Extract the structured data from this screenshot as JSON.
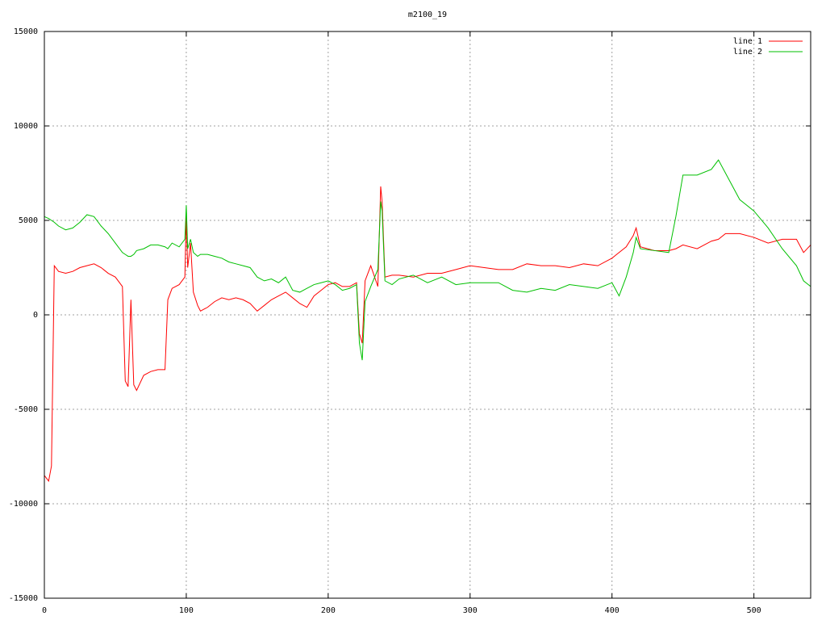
{
  "chart_data": {
    "type": "line",
    "title": "m2100_19",
    "x": [
      0,
      3,
      5,
      7,
      10,
      15,
      20,
      25,
      30,
      35,
      40,
      45,
      50,
      55,
      57,
      59,
      61,
      63,
      65,
      70,
      75,
      80,
      85,
      87,
      90,
      95,
      99,
      100,
      101,
      103,
      105,
      108,
      110,
      115,
      120,
      125,
      130,
      135,
      140,
      145,
      150,
      155,
      160,
      165,
      170,
      175,
      180,
      185,
      190,
      195,
      200,
      205,
      210,
      215,
      220,
      222,
      224,
      226,
      230,
      235,
      237,
      238,
      240,
      245,
      250,
      260,
      270,
      280,
      290,
      300,
      310,
      320,
      330,
      340,
      350,
      360,
      370,
      380,
      390,
      400,
      405,
      410,
      415,
      417,
      420,
      430,
      440,
      445,
      450,
      460,
      470,
      475,
      480,
      490,
      500,
      510,
      520,
      530,
      535,
      540
    ],
    "series": [
      {
        "name": "line 1",
        "color": "#ff0000",
        "values": [
          -8500,
          -8800,
          -8000,
          2600,
          2300,
          2200,
          2300,
          2500,
          2600,
          2700,
          2500,
          2200,
          2000,
          1500,
          -3500,
          -3800,
          800,
          -3700,
          -4000,
          -3200,
          -3000,
          -2900,
          -2900,
          800,
          1400,
          1600,
          2000,
          5200,
          2500,
          3800,
          1200,
          500,
          200,
          400,
          700,
          900,
          800,
          900,
          800,
          600,
          200,
          500,
          800,
          1000,
          1200,
          900,
          600,
          400,
          1000,
          1300,
          1600,
          1700,
          1500,
          1500,
          1700,
          -1000,
          -1500,
          1800,
          2600,
          1500,
          6800,
          6000,
          2000,
          2100,
          2100,
          2000,
          2200,
          2200,
          2400,
          2600,
          2500,
          2400,
          2400,
          2700,
          2600,
          2600,
          2500,
          2700,
          2600,
          3000,
          3300,
          3600,
          4200,
          4600,
          3600,
          3400,
          3400,
          3500,
          3700,
          3500,
          3900,
          4000,
          4300,
          4300,
          4100,
          3800,
          4000,
          4000,
          3300,
          3700
        ]
      },
      {
        "name": "line 2",
        "color": "#00c000",
        "values": [
          5200,
          5100,
          5000,
          4900,
          4700,
          4500,
          4600,
          4900,
          5300,
          5200,
          4700,
          4300,
          3800,
          3300,
          3200,
          3100,
          3100,
          3200,
          3400,
          3500,
          3700,
          3700,
          3600,
          3500,
          3800,
          3600,
          4000,
          5800,
          3500,
          4000,
          3300,
          3100,
          3200,
          3200,
          3100,
          3000,
          2800,
          2700,
          2600,
          2500,
          2000,
          1800,
          1900,
          1700,
          2000,
          1300,
          1200,
          1400,
          1600,
          1700,
          1800,
          1600,
          1300,
          1400,
          1600,
          -1500,
          -2400,
          700,
          1500,
          2400,
          6000,
          5500,
          1800,
          1600,
          1900,
          2100,
          1700,
          2000,
          1600,
          1700,
          1700,
          1700,
          1300,
          1200,
          1400,
          1300,
          1600,
          1500,
          1400,
          1700,
          1000,
          2000,
          3300,
          4100,
          3500,
          3400,
          3300,
          5200,
          7400,
          7400,
          7700,
          8200,
          7500,
          6100,
          5500,
          4600,
          3500,
          2600,
          1800,
          1500
        ]
      }
    ],
    "xlim": [
      0,
      540
    ],
    "xticks": [
      0,
      100,
      200,
      300,
      400,
      500
    ],
    "ylim": [
      -15000,
      15000
    ],
    "yticks": [
      -15000,
      -10000,
      -5000,
      0,
      5000,
      10000,
      15000
    ],
    "grid": true,
    "legend": "top-right"
  }
}
